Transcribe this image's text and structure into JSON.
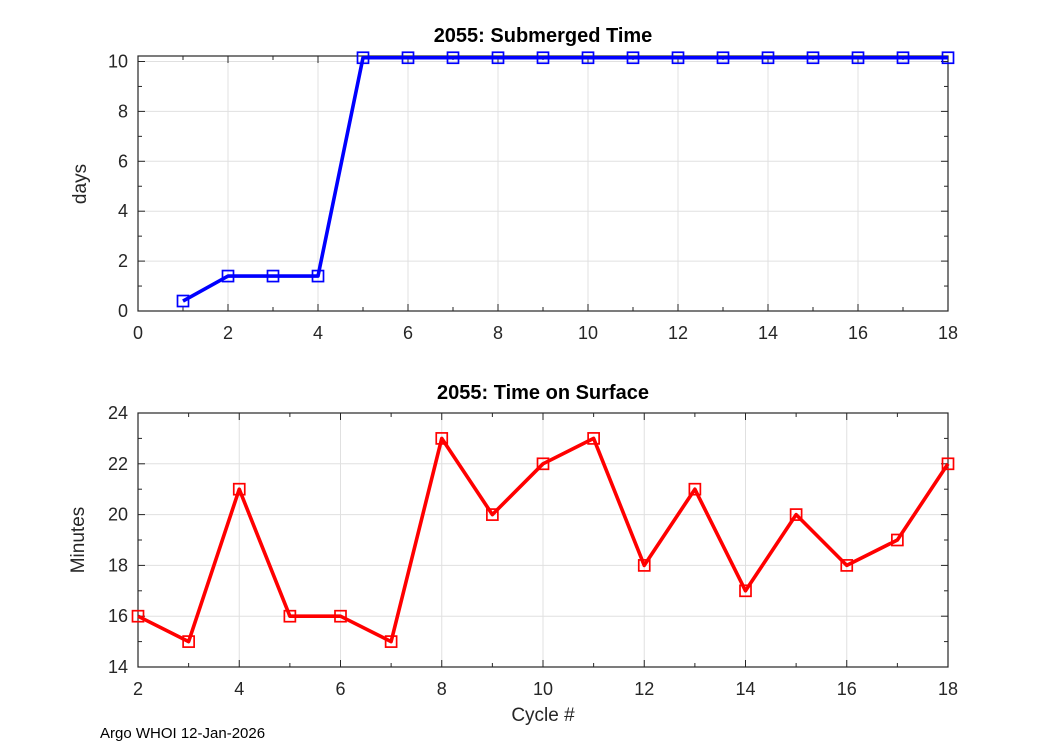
{
  "figure": {
    "background": "#ffffff",
    "footer_text": "Argo WHOI 12-Jan-2026"
  },
  "colors": {
    "grid": "#e0e0e0",
    "axis": "#262626",
    "tick_text": "#262626",
    "title_text": "#000000",
    "plot1_line": "#0000ff",
    "plot2_line": "#ff0000"
  },
  "chart_data": [
    {
      "type": "line",
      "title": "2055: Submerged Time",
      "xlabel": "",
      "ylabel": "days",
      "x": [
        1,
        2,
        3,
        4,
        5,
        6,
        7,
        8,
        9,
        10,
        11,
        12,
        13,
        14,
        15,
        16,
        17,
        18
      ],
      "values": [
        0.4,
        1.4,
        1.4,
        1.4,
        10.15,
        10.15,
        10.15,
        10.15,
        10.15,
        10.15,
        10.15,
        10.15,
        10.15,
        10.15,
        10.15,
        10.15,
        10.15,
        10.15
      ],
      "xlim": [
        0,
        18
      ],
      "ylim": [
        0,
        10.22
      ],
      "xticks_major": [
        0,
        2,
        4,
        6,
        8,
        10,
        12,
        14,
        16,
        18
      ],
      "xticks_minor": [
        1,
        3,
        5,
        7,
        9,
        11,
        13,
        15,
        17
      ],
      "yticks_major": [
        0,
        2,
        4,
        6,
        8,
        10
      ],
      "yticks_minor": [
        1,
        3,
        5,
        7,
        9
      ],
      "grid": true,
      "legend": "none",
      "line_color": "#0000ff",
      "marker": "square-open"
    },
    {
      "type": "line",
      "title": "2055: Time on Surface",
      "xlabel": "Cycle #",
      "ylabel": "Minutes",
      "x": [
        2,
        3,
        4,
        5,
        6,
        7,
        8,
        9,
        10,
        11,
        12,
        13,
        14,
        15,
        16,
        17,
        18
      ],
      "values": [
        16,
        15,
        21,
        16,
        16,
        15,
        23,
        20,
        22,
        23,
        18,
        21,
        17,
        20,
        18,
        19,
        22
      ],
      "xlim": [
        2,
        18
      ],
      "ylim": [
        14,
        24
      ],
      "xticks_major": [
        2,
        4,
        6,
        8,
        10,
        12,
        14,
        16,
        18
      ],
      "xticks_minor": [
        3,
        5,
        7,
        9,
        11,
        13,
        15,
        17
      ],
      "yticks_major": [
        14,
        16,
        18,
        20,
        22,
        24
      ],
      "yticks_minor": [
        15,
        17,
        19,
        21,
        23
      ],
      "grid": true,
      "legend": "none",
      "line_color": "#ff0000",
      "marker": "square-open"
    }
  ]
}
